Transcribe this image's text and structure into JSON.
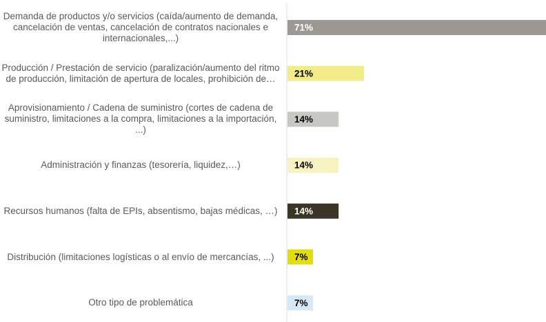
{
  "chart_data": {
    "type": "bar",
    "orientation": "horizontal",
    "categories": [
      "Demanda de productos y/o servicios (caída/aumento de demanda, cancelación de ventas, cancelación de contratos nacionales e internacionales,...)",
      "Producción / Prestación de servicio (paralización/aumento del ritmo de producción, limitación de apertura de locales, prohibición de…",
      "Aprovisionamiento / Cadena de suministro (cortes de cadena de suministro, limitaciones a la compra, limitaciones a la importación, ...)",
      "Administración y finanzas (tesorería, liquidez,…)",
      "Recursos humanos (falta de EPIs, absentismo, bajas médicas, …)",
      "Distribución (limitaciones logísticas o al envío de mercancías, ...)",
      "Otro tipo de problemática"
    ],
    "values": [
      71,
      21,
      14,
      14,
      14,
      7,
      7
    ],
    "value_labels": [
      "71%",
      "21%",
      "14%",
      "14%",
      "14%",
      "7%",
      "7%"
    ],
    "colors": [
      "#9e9892",
      "#f2ec8a",
      "#c9c7c3",
      "#f7f3c0",
      "#3a3527",
      "#e2dc10",
      "#d4e8f7"
    ]
  }
}
